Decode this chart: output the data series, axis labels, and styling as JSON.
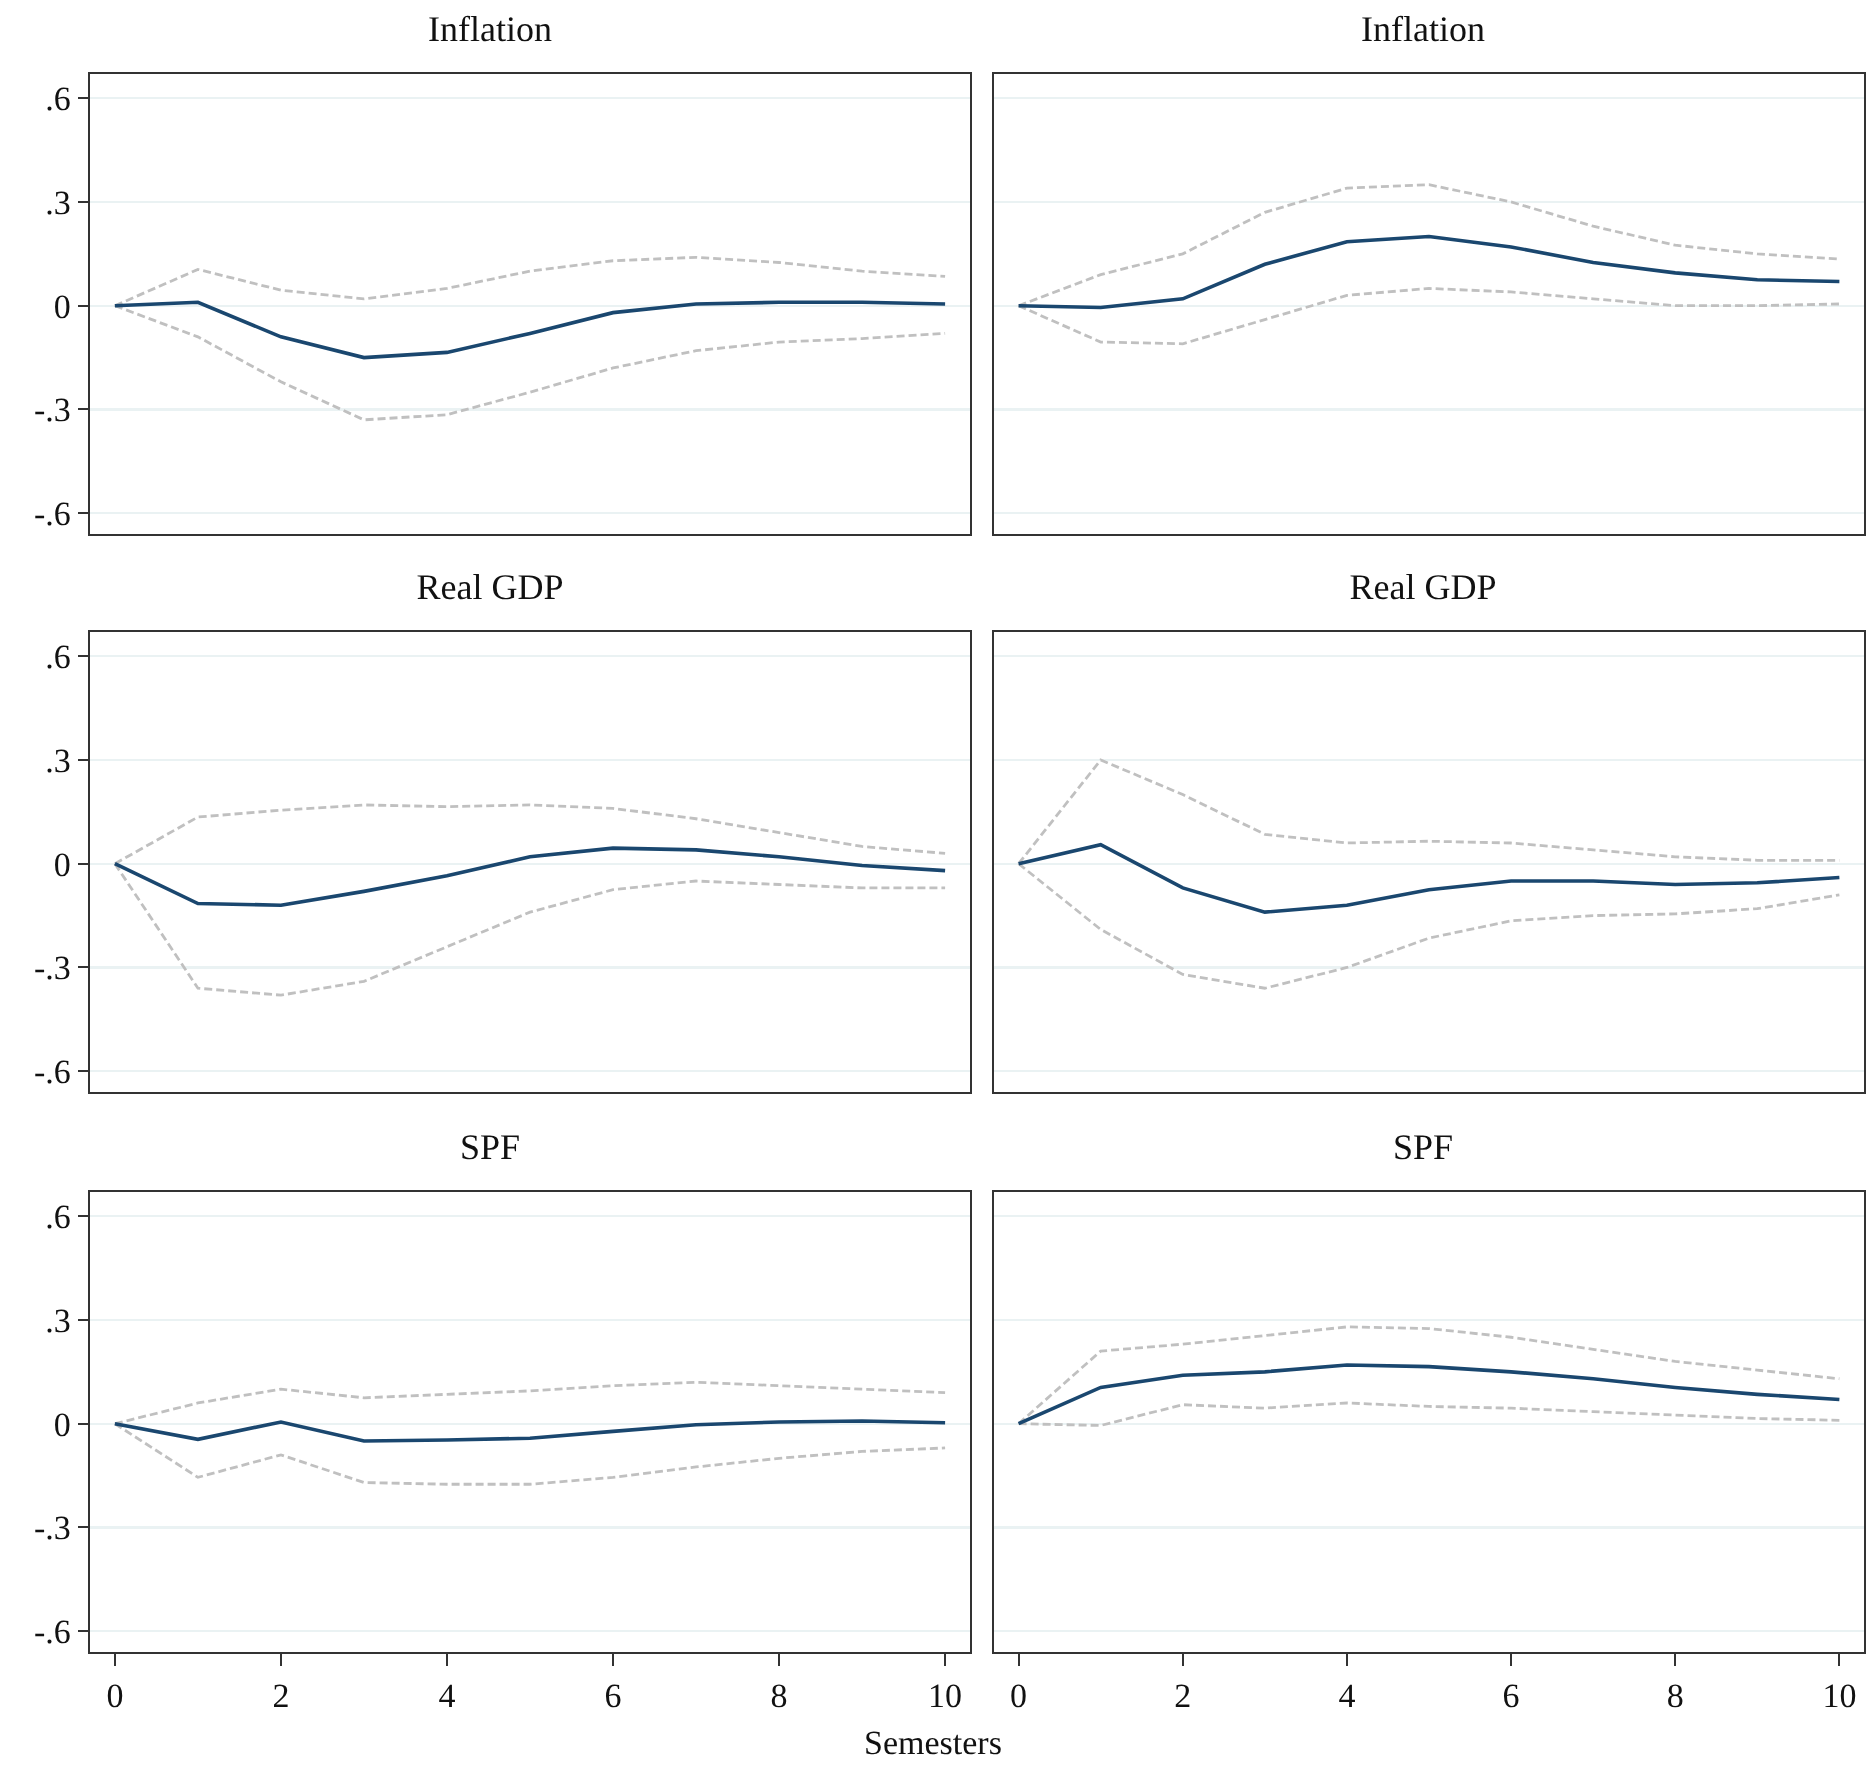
{
  "chart_data": [
    {
      "type": "line",
      "title": "Inflation",
      "x": [
        0,
        1,
        2,
        3,
        4,
        5,
        6,
        7,
        8,
        9,
        10
      ],
      "xlim": [
        -0.3,
        10.3
      ],
      "xticks": [
        0,
        2,
        4,
        6,
        8,
        10
      ],
      "ylim": [
        -0.66,
        0.67
      ],
      "yticks": [
        {
          "value": 0.6,
          "label": ".6"
        },
        {
          "value": 0.3,
          "label": ".3"
        },
        0,
        {
          "value": -0.3,
          "label": "-.3"
        },
        {
          "value": -0.6,
          "label": "-.6"
        }
      ],
      "grid": "y",
      "tick_labels": "y",
      "series": [
        {
          "color": "#c0c0c0",
          "line_style": "dashed",
          "values": [
            0,
            0.105,
            0.045,
            0.02,
            0.05,
            0.1,
            0.13,
            0.14,
            0.125,
            0.1,
            0.085
          ]
        },
        {
          "color": "#c0c0c0",
          "line_style": "dashed",
          "values": [
            0,
            -0.09,
            -0.22,
            -0.33,
            -0.315,
            -0.25,
            -0.18,
            -0.13,
            -0.105,
            -0.095,
            -0.08
          ]
        },
        {
          "color": "#1a476f",
          "line_style": "solid",
          "values": [
            0,
            0.01,
            -0.09,
            -0.15,
            -0.135,
            -0.08,
            -0.02,
            0.005,
            0.01,
            0.01,
            0.005
          ]
        }
      ]
    },
    {
      "type": "line",
      "title": "Inflation",
      "x": [
        0,
        1,
        2,
        3,
        4,
        5,
        6,
        7,
        8,
        9,
        10
      ],
      "xlim": [
        -0.3,
        10.3
      ],
      "xticks": [
        0,
        2,
        4,
        6,
        8,
        10
      ],
      "ylim": [
        -0.66,
        0.67
      ],
      "yticks": [
        0.6,
        0.3,
        0,
        -0.3,
        -0.6
      ],
      "grid": "y",
      "tick_labels": false,
      "series": [
        {
          "color": "#c0c0c0",
          "line_style": "dashed",
          "values": [
            0,
            0.09,
            0.15,
            0.27,
            0.34,
            0.35,
            0.3,
            0.23,
            0.175,
            0.15,
            0.135
          ]
        },
        {
          "color": "#c0c0c0",
          "line_style": "dashed",
          "values": [
            0,
            -0.105,
            -0.11,
            -0.04,
            0.03,
            0.05,
            0.04,
            0.02,
            0,
            0,
            0.005
          ]
        },
        {
          "color": "#1a476f",
          "line_style": "solid",
          "values": [
            0,
            -0.005,
            0.02,
            0.12,
            0.185,
            0.2,
            0.17,
            0.125,
            0.095,
            0.075,
            0.07
          ]
        }
      ]
    },
    {
      "type": "line",
      "title": "Real GDP",
      "x": [
        0,
        1,
        2,
        3,
        4,
        5,
        6,
        7,
        8,
        9,
        10
      ],
      "xlim": [
        -0.3,
        10.3
      ],
      "xticks": [
        0,
        2,
        4,
        6,
        8,
        10
      ],
      "ylim": [
        -0.66,
        0.67
      ],
      "yticks": [
        {
          "value": 0.6,
          "label": ".6"
        },
        {
          "value": 0.3,
          "label": ".3"
        },
        0,
        {
          "value": -0.3,
          "label": "-.3"
        },
        {
          "value": -0.6,
          "label": "-.6"
        }
      ],
      "grid": "y",
      "tick_labels": "y",
      "series": [
        {
          "color": "#c0c0c0",
          "line_style": "dashed",
          "values": [
            0,
            0.135,
            0.155,
            0.17,
            0.165,
            0.17,
            0.16,
            0.13,
            0.09,
            0.05,
            0.03
          ]
        },
        {
          "color": "#c0c0c0",
          "line_style": "dashed",
          "values": [
            0,
            -0.36,
            -0.38,
            -0.34,
            -0.24,
            -0.14,
            -0.075,
            -0.05,
            -0.06,
            -0.07,
            -0.07
          ]
        },
        {
          "color": "#1a476f",
          "line_style": "solid",
          "values": [
            0,
            -0.115,
            -0.12,
            -0.08,
            -0.035,
            0.02,
            0.045,
            0.04,
            0.02,
            -0.005,
            -0.02
          ]
        }
      ]
    },
    {
      "type": "line",
      "title": "Real GDP",
      "x": [
        0,
        1,
        2,
        3,
        4,
        5,
        6,
        7,
        8,
        9,
        10
      ],
      "xlim": [
        -0.3,
        10.3
      ],
      "xticks": [
        0,
        2,
        4,
        6,
        8,
        10
      ],
      "ylim": [
        -0.66,
        0.67
      ],
      "yticks": [
        0.6,
        0.3,
        0,
        -0.3,
        -0.6
      ],
      "grid": "y",
      "tick_labels": false,
      "series": [
        {
          "color": "#c0c0c0",
          "line_style": "dashed",
          "values": [
            0,
            0.3,
            0.2,
            0.085,
            0.06,
            0.065,
            0.06,
            0.04,
            0.02,
            0.01,
            0.01
          ]
        },
        {
          "color": "#c0c0c0",
          "line_style": "dashed",
          "values": [
            0,
            -0.19,
            -0.32,
            -0.36,
            -0.3,
            -0.215,
            -0.165,
            -0.15,
            -0.145,
            -0.13,
            -0.09
          ]
        },
        {
          "color": "#1a476f",
          "line_style": "solid",
          "values": [
            0,
            0.055,
            -0.07,
            -0.14,
            -0.12,
            -0.075,
            -0.05,
            -0.05,
            -0.06,
            -0.055,
            -0.04
          ]
        }
      ]
    },
    {
      "type": "line",
      "title": "SPF",
      "xlabel": "Semesters",
      "x": [
        0,
        1,
        2,
        3,
        4,
        5,
        6,
        7,
        8,
        9,
        10
      ],
      "xlim": [
        -0.3,
        10.3
      ],
      "xticks": [
        0,
        2,
        4,
        6,
        8,
        10
      ],
      "ylim": [
        -0.66,
        0.67
      ],
      "yticks": [
        {
          "value": 0.6,
          "label": ".6"
        },
        {
          "value": 0.3,
          "label": ".3"
        },
        0,
        {
          "value": -0.3,
          "label": "-.3"
        },
        {
          "value": -0.6,
          "label": "-.6"
        }
      ],
      "grid": "y",
      "series": [
        {
          "color": "#c0c0c0",
          "line_style": "dashed",
          "values": [
            0,
            0.06,
            0.1,
            0.075,
            0.085,
            0.095,
            0.11,
            0.12,
            0.11,
            0.1,
            0.09
          ]
        },
        {
          "color": "#c0c0c0",
          "line_style": "dashed",
          "values": [
            0,
            -0.155,
            -0.09,
            -0.17,
            -0.175,
            -0.175,
            -0.155,
            -0.125,
            -0.1,
            -0.08,
            -0.07
          ]
        },
        {
          "color": "#1a476f",
          "line_style": "solid",
          "values": [
            0,
            -0.045,
            0.005,
            -0.05,
            -0.047,
            -0.042,
            -0.022,
            -0.003,
            0.005,
            0.008,
            0.003
          ]
        }
      ]
    },
    {
      "type": "line",
      "title": "SPF",
      "x": [
        0,
        1,
        2,
        3,
        4,
        5,
        6,
        7,
        8,
        9,
        10
      ],
      "xlim": [
        -0.3,
        10.3
      ],
      "xticks": [
        0,
        2,
        4,
        6,
        8,
        10
      ],
      "ylim": [
        -0.66,
        0.67
      ],
      "yticks": [
        0.6,
        0.3,
        0,
        -0.3,
        -0.6
      ],
      "grid": "y",
      "tick_labels": "x",
      "series": [
        {
          "color": "#c0c0c0",
          "line_style": "dashed",
          "values": [
            0,
            0.21,
            0.23,
            0.255,
            0.28,
            0.275,
            0.25,
            0.215,
            0.18,
            0.155,
            0.13
          ]
        },
        {
          "color": "#c0c0c0",
          "line_style": "dashed",
          "values": [
            0,
            -0.005,
            0.055,
            0.045,
            0.06,
            0.05,
            0.045,
            0.035,
            0.025,
            0.015,
            0.01
          ]
        },
        {
          "color": "#1a476f",
          "line_style": "solid",
          "values": [
            0,
            0.105,
            0.14,
            0.15,
            0.17,
            0.165,
            0.15,
            0.13,
            0.105,
            0.085,
            0.07
          ]
        }
      ]
    }
  ]
}
